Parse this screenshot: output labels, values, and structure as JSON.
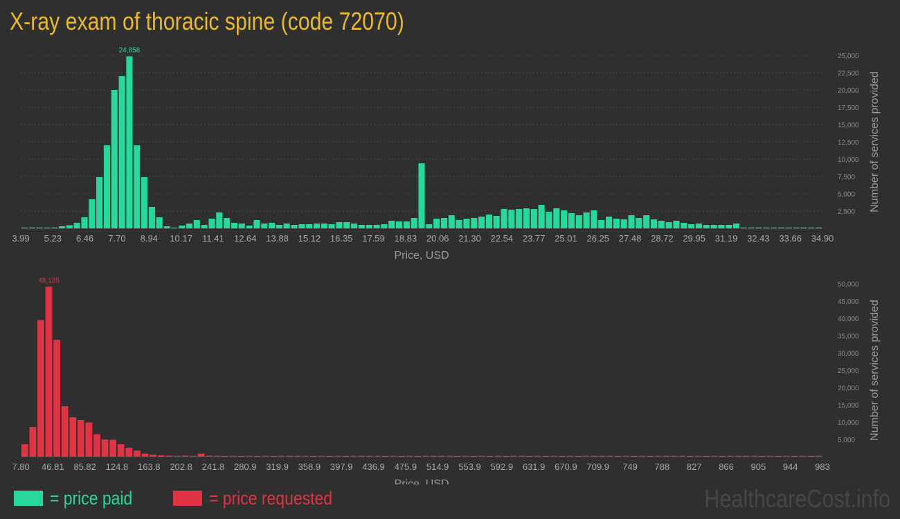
{
  "title": "X-ray exam of thoracic spine (code 72070)",
  "colors": {
    "background": "#2f2f2f",
    "title": "#e8b931",
    "paid": "#27d89b",
    "requested": "#e03444",
    "grid": "#4a4a4a"
  },
  "legend": {
    "paid": "= price paid",
    "requested": "= price requested"
  },
  "watermark": "HealthcareCost.info",
  "chart_data": [
    {
      "type": "bar",
      "name": "price paid",
      "xlabel": "Price, USD",
      "ylabel": "Number of services provided",
      "ylim": [
        0,
        25000
      ],
      "grid": true,
      "x_tick_labels": [
        "3.99",
        "5.23",
        "6.46",
        "7.70",
        "8.94",
        "10.17",
        "11.41",
        "12.64",
        "13.88",
        "15.12",
        "16.35",
        "17.59",
        "18.83",
        "20.06",
        "21.30",
        "22.54",
        "23.77",
        "25.01",
        "26.25",
        "27.48",
        "28.72",
        "29.95",
        "31.19",
        "32.43",
        "33.66",
        "34.90"
      ],
      "y_ticks": [
        2500,
        5000,
        7500,
        10000,
        12500,
        15000,
        17500,
        20000,
        22500,
        25000
      ],
      "y_tick_labels": [
        "2,500",
        "5,000",
        "7,500",
        "10,000",
        "12,500",
        "15,000",
        "17,500",
        "20,000",
        "22,500",
        "25,000"
      ],
      "peak_label": "24,858",
      "peak_index": 14,
      "values": [
        100,
        100,
        100,
        100,
        100,
        300,
        450,
        800,
        1600,
        4200,
        7400,
        12000,
        20000,
        22000,
        24858,
        12000,
        7400,
        3100,
        1600,
        300,
        100,
        400,
        700,
        1200,
        500,
        1400,
        2300,
        1500,
        800,
        700,
        400,
        1200,
        700,
        800,
        500,
        700,
        500,
        600,
        600,
        700,
        700,
        600,
        900,
        900,
        700,
        500,
        500,
        500,
        600,
        1100,
        1000,
        1000,
        1500,
        9400,
        600,
        1400,
        1500,
        1900,
        1200,
        1400,
        1500,
        1700,
        2000,
        1800,
        2800,
        2700,
        2800,
        2900,
        2800,
        3400,
        2400,
        2900,
        2600,
        2200,
        1900,
        2300,
        2600,
        1200,
        1700,
        1400,
        1300,
        1900,
        1500,
        1900,
        1300,
        1100,
        900,
        1100,
        800,
        600,
        700,
        500,
        500,
        500,
        500,
        700,
        100,
        50,
        50,
        50,
        50,
        50,
        100,
        50,
        50,
        50,
        100
      ]
    },
    {
      "type": "bar",
      "name": "price requested",
      "xlabel": "Price, USD",
      "ylabel": "Number of services provided",
      "ylim": [
        0,
        50000
      ],
      "grid": false,
      "x_tick_labels": [
        "7.80",
        "46.81",
        "85.82",
        "124.8",
        "163.8",
        "202.8",
        "241.8",
        "280.9",
        "319.9",
        "358.9",
        "397.9",
        "436.9",
        "475.9",
        "514.9",
        "553.9",
        "592.9",
        "631.9",
        "670.9",
        "709.9",
        "749",
        "788",
        "827",
        "866",
        "905",
        "944",
        "983"
      ],
      "y_ticks": [
        5000,
        10000,
        15000,
        20000,
        25000,
        30000,
        35000,
        40000,
        45000,
        50000
      ],
      "y_tick_labels": [
        "5,000",
        "10,000",
        "15,000",
        "20,000",
        "25,000",
        "30,000",
        "35,000",
        "40,000",
        "45,000",
        "50,000"
      ],
      "peak_label": "49,135",
      "peak_index": 3,
      "values": [
        3600,
        8600,
        39500,
        49135,
        33800,
        14600,
        11400,
        10600,
        9900,
        6500,
        5000,
        4900,
        3600,
        2600,
        1800,
        900,
        600,
        400,
        300,
        200,
        300,
        200,
        900,
        300,
        200,
        100,
        100,
        100,
        50,
        50,
        50,
        50,
        100,
        100,
        100,
        100,
        100,
        50,
        50,
        50,
        100,
        50,
        50,
        50,
        50,
        50,
        50,
        50,
        50,
        50,
        50,
        50,
        50,
        100,
        50,
        50,
        50,
        50,
        50,
        100,
        50,
        50,
        50,
        50,
        50,
        50,
        50,
        50,
        50,
        50,
        50,
        50,
        50,
        50,
        50,
        50,
        50,
        50,
        50,
        50,
        50,
        50,
        50,
        50,
        50,
        50,
        50,
        100,
        50,
        50,
        50,
        50,
        50,
        50,
        50,
        50,
        50,
        50,
        50,
        100
      ]
    }
  ]
}
